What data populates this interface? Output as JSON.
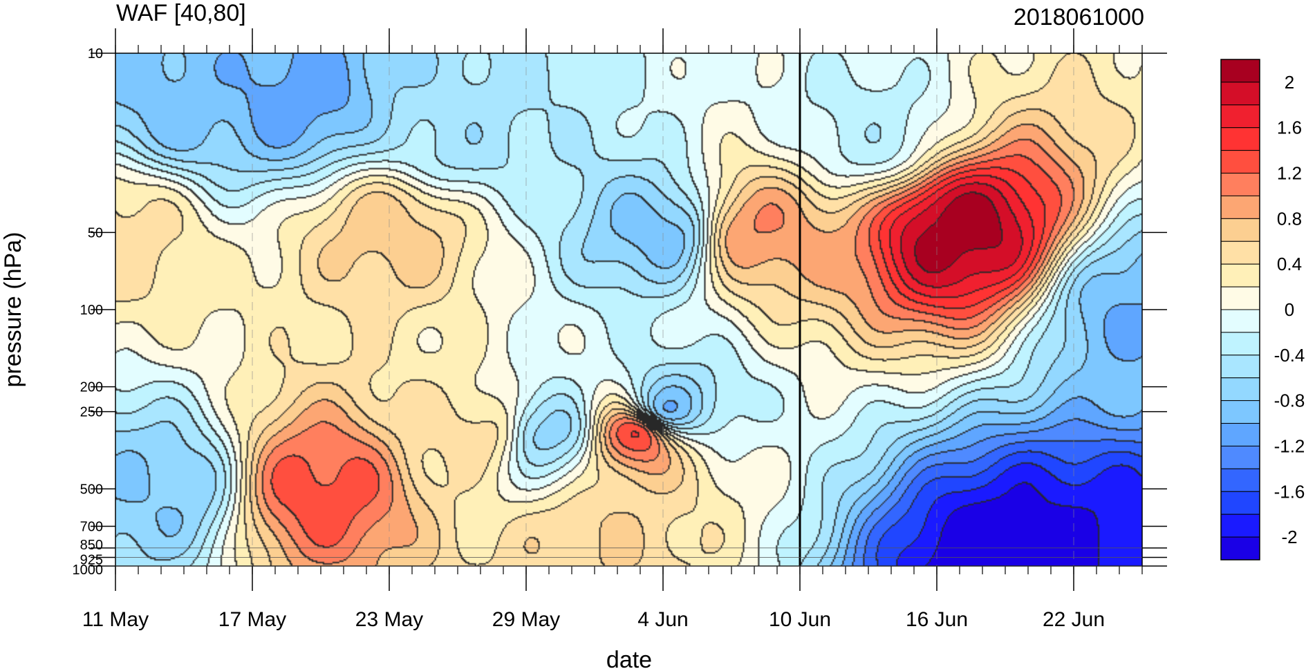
{
  "chart_data": {
    "type": "heatmap",
    "title": "WAF [40,80]",
    "subtitle": "2018061000",
    "xlabel": "date",
    "ylabel": "pressure (hPa)",
    "x_ticks": [
      "11 May",
      "17 May",
      "23 May",
      "29 May",
      "4 Jun",
      "10 Jun",
      "16 Jun",
      "22 Jun"
    ],
    "x_tick_dates": [
      "2018-05-11",
      "2018-05-17",
      "2018-05-23",
      "2018-05-29",
      "2018-06-04",
      "2018-06-10",
      "2018-06-16",
      "2018-06-22"
    ],
    "xlim": [
      "2018-05-11",
      "2018-06-25"
    ],
    "y_ticks": [
      10,
      50,
      100,
      200,
      250,
      500,
      700,
      850,
      925,
      1000
    ],
    "ylim": [
      1000,
      10
    ],
    "y_scale": "log",
    "y_inverted": true,
    "reference_line_date": "2018-06-10",
    "colorbar": {
      "ticks": [
        "2",
        "1.6",
        "1.2",
        "0.8",
        "0.4",
        "0",
        "-0.4",
        "-0.8",
        "-1.2",
        "-1.6",
        "-2"
      ],
      "levels": [
        -2.2,
        -2.0,
        -1.8,
        -1.6,
        -1.4,
        -1.2,
        -1.0,
        -0.8,
        -0.6,
        -0.4,
        -0.2,
        0.0,
        0.2,
        0.4,
        0.6,
        0.8,
        1.0,
        1.2,
        1.4,
        1.6,
        1.8,
        2.0,
        2.2
      ],
      "colors": [
        "#1a00e6",
        "#1a1aff",
        "#2046ff",
        "#3366ff",
        "#4f8aff",
        "#5fa6ff",
        "#7dc7ff",
        "#93d8ff",
        "#a9e6ff",
        "#bff3ff",
        "#e3fdff",
        "#fffbe6",
        "#fff0b8",
        "#ffe0a6",
        "#fccf91",
        "#fca673",
        "#ff7f5e",
        "#ff4f3f",
        "#ff3333",
        "#f0202f",
        "#d40e28",
        "#a80020"
      ]
    },
    "features": [
      {
        "date": "2018-06-17",
        "pressure": 50,
        "value": 2.1
      },
      {
        "date": "2018-06-03",
        "pressure": 300,
        "value": 1.6
      },
      {
        "date": "2018-05-20",
        "pressure": 500,
        "value": 1.3
      },
      {
        "date": "2018-05-23",
        "pressure": 50,
        "value": 0.7
      },
      {
        "date": "2018-06-08",
        "pressure": 50,
        "value": 1.0
      },
      {
        "date": "2018-05-11",
        "pressure": 50,
        "value": 0.5
      },
      {
        "date": "2018-06-19",
        "pressure": 980,
        "value": -2.2
      },
      {
        "date": "2018-06-23",
        "pressure": 960,
        "value": -2.0
      },
      {
        "date": "2018-05-19",
        "pressure": 15,
        "value": -1.1
      },
      {
        "date": "2018-05-14",
        "pressure": 15,
        "value": -0.9
      },
      {
        "date": "2018-06-25",
        "pressure": 100,
        "value": -1.0
      },
      {
        "date": "2018-06-04",
        "pressure": 250,
        "value": -1.1
      },
      {
        "date": "2018-05-13",
        "pressure": 500,
        "value": -0.8
      },
      {
        "date": "2018-06-04",
        "pressure": 50,
        "value": -0.9
      },
      {
        "date": "2018-05-30",
        "pressure": 300,
        "value": -0.7
      },
      {
        "date": "2018-05-26",
        "pressure": 20,
        "value": -0.5
      },
      {
        "date": "2018-06-01",
        "pressure": 800,
        "value": 0.6
      },
      {
        "date": "2018-05-27",
        "pressure": 300,
        "value": 0.5
      },
      {
        "date": "2018-06-13",
        "pressure": 20,
        "value": -0.3
      }
    ]
  }
}
